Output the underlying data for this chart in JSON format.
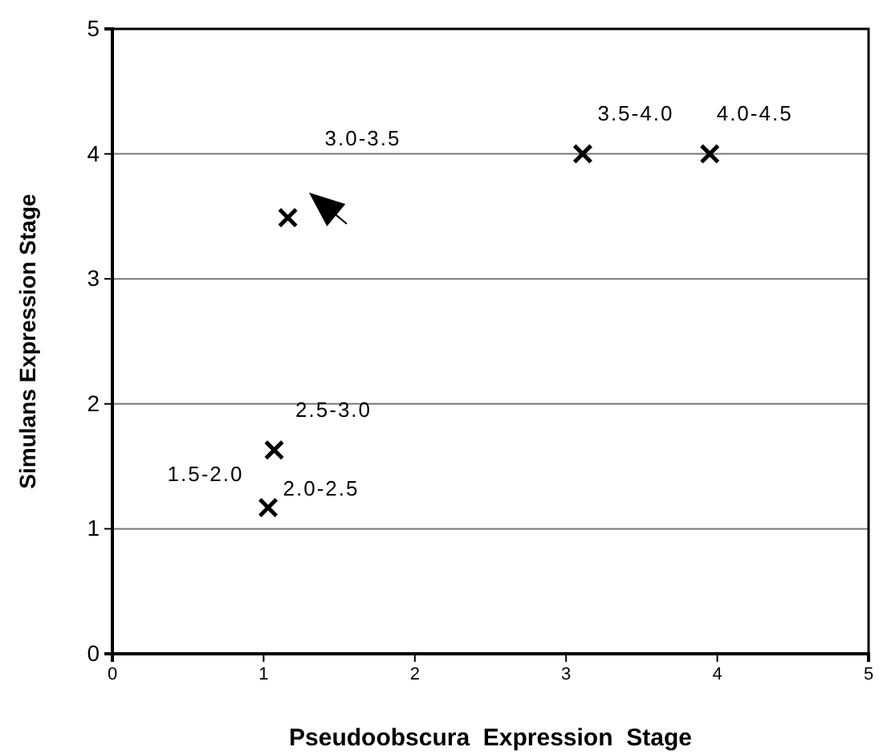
{
  "chart_data": {
    "type": "scatter",
    "xlabel": "Pseudoobscura  Expression  Stage",
    "ylabel": "Simulans Expression Stage",
    "x": [
      1.03,
      1.07,
      1.16,
      3.11,
      3.95
    ],
    "values": [
      1.17,
      1.63,
      3.49,
      4.0,
      4.0
    ],
    "color": "#000000",
    "marker": "cross",
    "xlim": [
      0,
      5
    ],
    "ylim": [
      0,
      5
    ],
    "xticks": [
      0,
      1,
      2,
      3,
      4,
      5
    ],
    "yticks": [
      0,
      1,
      2,
      3,
      4,
      5
    ],
    "grid": "y",
    "annotations": [
      {
        "text": "1.5-2.0",
        "x": 1.03,
        "y": 1.17
      },
      {
        "text": "2.0-2.5",
        "x": 1.03,
        "y": 1.17
      },
      {
        "text": "2.5-3.0",
        "x": 1.07,
        "y": 1.63
      },
      "3.0-3.5",
      {
        "text": "3.5-4.0",
        "x": 3.11,
        "y": 4.0
      },
      {
        "text": "4.0-4.5",
        "x": 3.95,
        "y": 4.0
      }
    ]
  }
}
